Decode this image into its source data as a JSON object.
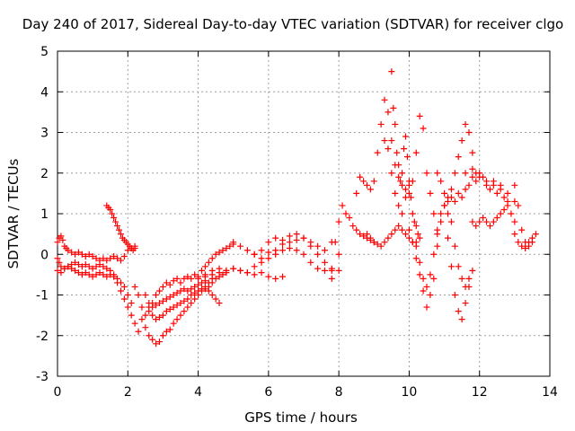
{
  "chart_data": {
    "type": "scatter",
    "title": "Day 240 of 2017, Sidereal Day-to-day VTEC variation (SDTVAR) for receiver clgo",
    "xlabel": "GPS time / hours",
    "ylabel": "SDTVAR / TECUs",
    "xlim": [
      0,
      14
    ],
    "ylim": [
      -3,
      5
    ],
    "xticks": [
      "0",
      "2",
      "4",
      "6",
      "8",
      "10",
      "12",
      "14"
    ],
    "yticks": [
      "-3",
      "-2",
      "-1",
      "0",
      "1",
      "2",
      "3",
      "4",
      "5"
    ],
    "grid": true,
    "marker": "+",
    "color": "#ff0000",
    "series": [
      {
        "name": "SDTVAR",
        "x": [
          0.0,
          0.05,
          0.1,
          0.15,
          0.2,
          0.25,
          0.3,
          0.4,
          0.5,
          0.6,
          0.7,
          0.8,
          0.9,
          1.0,
          1.1,
          1.2,
          1.3,
          1.4,
          1.5,
          1.6,
          1.7,
          1.8,
          1.9,
          2.0,
          2.1,
          2.2,
          0.0,
          0.05,
          0.1,
          0.2,
          0.3,
          0.4,
          0.5,
          0.6,
          0.7,
          0.8,
          0.9,
          1.0,
          1.1,
          1.2,
          1.3,
          1.4,
          1.5,
          1.6,
          1.7,
          1.8,
          1.9,
          2.0,
          2.1,
          2.2,
          2.3,
          0.0,
          0.1,
          0.2,
          0.3,
          0.4,
          0.5,
          0.6,
          0.7,
          0.8,
          0.9,
          1.0,
          1.1,
          1.2,
          1.3,
          1.4,
          1.5,
          1.6,
          1.7,
          1.8,
          1.9,
          2.0,
          2.1,
          1.4,
          1.45,
          1.5,
          1.55,
          1.6,
          1.65,
          1.7,
          1.75,
          1.8,
          1.85,
          1.9,
          1.95,
          2.0,
          2.05,
          2.1,
          2.15,
          2.2,
          2.2,
          2.3,
          2.4,
          2.5,
          2.6,
          2.7,
          2.8,
          2.9,
          3.0,
          3.1,
          3.2,
          3.3,
          3.4,
          3.5,
          3.6,
          3.7,
          3.8,
          3.9,
          4.0,
          4.1,
          4.2,
          4.3,
          4.4,
          4.5,
          4.6,
          4.7,
          4.8,
          4.9,
          5.0,
          2.4,
          2.5,
          2.6,
          2.7,
          2.8,
          2.9,
          3.0,
          3.1,
          3.2,
          3.3,
          3.4,
          3.5,
          3.6,
          3.7,
          3.8,
          3.9,
          4.0,
          4.1,
          4.2,
          4.3,
          4.4,
          4.5,
          4.6,
          4.7,
          4.8,
          2.5,
          2.6,
          2.7,
          2.8,
          2.9,
          3.0,
          3.1,
          3.2,
          3.3,
          3.4,
          3.5,
          3.6,
          3.7,
          3.8,
          3.9,
          4.0,
          4.1,
          4.2,
          4.3,
          4.4,
          2.6,
          2.7,
          2.8,
          2.9,
          3.0,
          3.1,
          3.2,
          3.3,
          3.4,
          3.5,
          3.6,
          3.7,
          3.8,
          3.9,
          4.0,
          4.1,
          4.2,
          4.3,
          4.4,
          4.5,
          4.6,
          4.0,
          4.2,
          4.4,
          4.6,
          4.8,
          5.0,
          5.2,
          5.4,
          5.6,
          5.8,
          6.0,
          6.2,
          6.4,
          6.6,
          6.8,
          7.0,
          7.2,
          7.4,
          7.6,
          7.8,
          5.0,
          5.2,
          5.4,
          5.6,
          5.8,
          6.0,
          6.2,
          6.4,
          6.6,
          6.8,
          7.0,
          7.2,
          7.4,
          7.6,
          7.8,
          8.0,
          4.2,
          4.4,
          4.6,
          4.8,
          5.0,
          5.2,
          5.4,
          5.6,
          5.8,
          6.0,
          6.2,
          6.4,
          5.6,
          5.8,
          6.0,
          6.2,
          6.4,
          6.6,
          6.8,
          7.0,
          7.2,
          7.4,
          7.6,
          7.8,
          8.0,
          7.8,
          7.9,
          8.0,
          8.1,
          8.2,
          8.3,
          8.4,
          8.5,
          8.6,
          8.7,
          8.8,
          8.9,
          9.0,
          8.5,
          8.6,
          8.7,
          8.8,
          8.9,
          9.0,
          9.1,
          9.2,
          9.3,
          9.4,
          9.5,
          9.6,
          9.7,
          9.8,
          9.9,
          10.0,
          8.8,
          8.9,
          9.0,
          9.1,
          9.2,
          9.3,
          9.4,
          9.5,
          9.6,
          9.7,
          9.8,
          9.9,
          10.0,
          10.1,
          10.2,
          9.5,
          9.55,
          9.6,
          9.65,
          9.7,
          9.75,
          9.8,
          9.85,
          9.9,
          9.95,
          10.0,
          10.05,
          10.1,
          10.15,
          10.2,
          10.25,
          10.3,
          9.3,
          9.4,
          9.5,
          9.6,
          9.7,
          9.8,
          9.9,
          10.0,
          10.1,
          10.2,
          10.3,
          10.4,
          10.5,
          10.6,
          10.7,
          10.8,
          10.0,
          10.1,
          10.2,
          10.3,
          10.4,
          10.5,
          10.6,
          10.7,
          10.8,
          10.9,
          11.0,
          11.1,
          11.2,
          11.3,
          11.4,
          11.5,
          11.6,
          11.7,
          10.2,
          10.3,
          10.4,
          10.5,
          10.6,
          10.7,
          10.8,
          10.9,
          11.0,
          11.1,
          11.2,
          11.3,
          11.4,
          11.5,
          11.6,
          11.7,
          11.8,
          10.8,
          10.9,
          11.0,
          11.1,
          11.2,
          11.3,
          11.4,
          11.5,
          11.6,
          11.7,
          11.8,
          11.9,
          11.0,
          11.1,
          11.2,
          11.3,
          11.4,
          11.5,
          11.6,
          11.7,
          11.8,
          11.9,
          12.0,
          12.1,
          12.2,
          12.3,
          12.4,
          12.5,
          12.6,
          12.7,
          12.8,
          11.8,
          11.9,
          12.0,
          12.1,
          12.2,
          12.3,
          12.4,
          12.5,
          12.6,
          12.7,
          12.8,
          12.9,
          13.0,
          11.6,
          11.8,
          12.0,
          12.2,
          12.4,
          12.6,
          12.8,
          13.0,
          13.0,
          13.1,
          13.2,
          13.3,
          13.4,
          13.5,
          13.6,
          13.0,
          13.1,
          13.2,
          13.3,
          13.4,
          13.5
        ],
        "y": [
          0.3,
          0.4,
          0.45,
          0.35,
          0.2,
          0.15,
          0.1,
          0.05,
          0.0,
          0.05,
          0.0,
          -0.05,
          0.0,
          -0.05,
          -0.1,
          -0.15,
          -0.1,
          -0.15,
          -0.1,
          -0.05,
          -0.1,
          -0.15,
          -0.05,
          0.1,
          0.15,
          0.2,
          -0.1,
          -0.2,
          -0.3,
          -0.35,
          -0.3,
          -0.25,
          -0.2,
          -0.25,
          -0.3,
          -0.25,
          -0.3,
          -0.35,
          -0.3,
          -0.25,
          -0.3,
          -0.35,
          -0.4,
          -0.5,
          -0.7,
          -0.9,
          -1.1,
          -1.3,
          -1.5,
          -1.7,
          -1.9,
          -0.4,
          -0.45,
          -0.35,
          -0.3,
          -0.35,
          -0.4,
          -0.45,
          -0.5,
          -0.45,
          -0.5,
          -0.55,
          -0.5,
          -0.45,
          -0.5,
          -0.55,
          -0.5,
          -0.55,
          -0.6,
          -0.7,
          -0.8,
          -1.0,
          -1.2,
          1.2,
          1.15,
          1.1,
          1.0,
          0.9,
          0.8,
          0.7,
          0.6,
          0.5,
          0.4,
          0.35,
          0.3,
          0.25,
          0.2,
          0.15,
          0.1,
          0.15,
          -0.8,
          -1.0,
          -1.3,
          -1.5,
          -1.4,
          -1.2,
          -1.0,
          -0.9,
          -0.8,
          -0.7,
          -0.75,
          -0.65,
          -0.6,
          -0.7,
          -0.6,
          -0.55,
          -0.6,
          -0.5,
          -0.55,
          -0.4,
          -0.3,
          -0.2,
          -0.1,
          0.0,
          0.05,
          0.1,
          0.15,
          0.2,
          0.25,
          -1.6,
          -1.8,
          -2.0,
          -2.1,
          -2.2,
          -2.15,
          -2.0,
          -1.9,
          -1.85,
          -1.7,
          -1.6,
          -1.5,
          -1.4,
          -1.3,
          -1.2,
          -1.1,
          -1.0,
          -0.9,
          -0.85,
          -0.8,
          -0.7,
          -0.6,
          -0.55,
          -0.5,
          -0.45,
          -1.0,
          -1.2,
          -1.3,
          -1.25,
          -1.2,
          -1.15,
          -1.1,
          -1.05,
          -1.0,
          -0.95,
          -0.9,
          -0.85,
          -0.9,
          -0.85,
          -0.8,
          -0.75,
          -0.7,
          -0.65,
          -0.7,
          -0.6,
          -1.3,
          -1.5,
          -1.6,
          -1.55,
          -1.5,
          -1.4,
          -1.35,
          -1.3,
          -1.25,
          -1.2,
          -1.15,
          -1.1,
          -1.0,
          -0.95,
          -0.9,
          -0.85,
          -0.8,
          -0.9,
          -1.0,
          -1.1,
          -1.2,
          -0.6,
          -0.55,
          -0.5,
          -0.45,
          -0.4,
          -0.35,
          -0.4,
          -0.45,
          -0.3,
          -0.2,
          -0.1,
          0.0,
          0.1,
          0.15,
          0.1,
          0.0,
          -0.2,
          -0.35,
          -0.4,
          -0.4,
          0.3,
          0.2,
          0.1,
          0.0,
          -0.1,
          0.05,
          0.1,
          0.25,
          0.3,
          0.35,
          0.4,
          0.3,
          0.2,
          0.1,
          0.3,
          0.0,
          -0.5,
          -0.4,
          -0.35,
          -0.4,
          -0.35,
          -0.4,
          -0.45,
          -0.5,
          -0.45,
          -0.55,
          -0.6,
          -0.55,
          0.0,
          0.1,
          0.3,
          0.4,
          0.35,
          0.45,
          0.5,
          0.4,
          0.2,
          0.0,
          -0.2,
          -0.35,
          -0.4,
          -0.6,
          0.3,
          0.8,
          1.2,
          1.0,
          0.9,
          0.7,
          0.6,
          0.5,
          0.45,
          0.4,
          0.35,
          0.3,
          1.5,
          1.9,
          1.8,
          1.7,
          1.6,
          1.8,
          2.5,
          3.2,
          3.8,
          3.5,
          2.8,
          2.2,
          1.9,
          1.7,
          1.6,
          1.5,
          0.5,
          0.4,
          0.3,
          0.25,
          0.2,
          0.3,
          0.4,
          0.5,
          0.6,
          0.7,
          0.6,
          0.5,
          0.4,
          0.3,
          0.2,
          4.5,
          3.6,
          3.2,
          2.5,
          2.2,
          1.8,
          2.0,
          2.6,
          2.9,
          2.4,
          1.8,
          1.4,
          1.0,
          0.8,
          0.7,
          0.5,
          0.4,
          2.8,
          2.6,
          2.0,
          1.5,
          1.2,
          1.0,
          1.4,
          1.7,
          1.8,
          2.5,
          3.4,
          3.1,
          2.0,
          1.5,
          1.0,
          0.5,
          0.6,
          0.3,
          -0.1,
          -0.5,
          -0.9,
          -1.3,
          -1.0,
          -0.6,
          0.2,
          0.8,
          1.2,
          0.4,
          -0.3,
          -1.0,
          -1.4,
          -1.6,
          -1.2,
          -0.8,
          0.3,
          -0.2,
          -0.6,
          -0.8,
          -0.5,
          0.0,
          0.6,
          1.0,
          1.2,
          1.0,
          0.8,
          0.2,
          -0.3,
          -0.6,
          -0.8,
          -0.6,
          -0.4,
          2.0,
          1.8,
          1.5,
          1.4,
          1.6,
          2.0,
          2.4,
          2.8,
          3.2,
          3.0,
          2.5,
          2.0,
          1.2,
          1.3,
          1.4,
          1.3,
          1.5,
          1.4,
          1.6,
          1.7,
          1.9,
          1.8,
          2.0,
          1.9,
          1.7,
          1.6,
          1.8,
          1.5,
          1.7,
          1.4,
          1.3,
          0.8,
          0.7,
          0.8,
          0.9,
          0.8,
          0.7,
          0.8,
          0.9,
          1.0,
          1.1,
          1.2,
          1.0,
          0.8,
          2.0,
          2.1,
          1.9,
          1.8,
          1.7,
          1.6,
          1.5,
          1.3,
          1.7,
          1.2,
          0.6,
          0.3,
          0.2,
          0.3,
          0.5,
          0.5,
          0.3,
          0.2,
          0.15,
          0.3,
          0.4
        ]
      }
    ]
  }
}
